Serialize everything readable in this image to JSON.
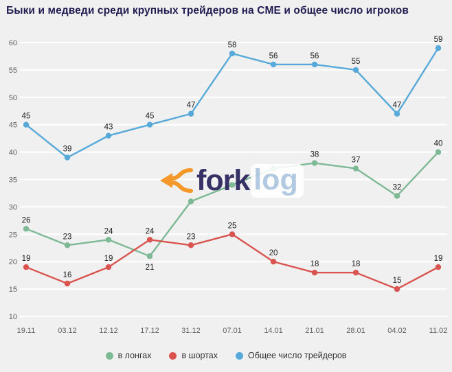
{
  "title": "Быки и медведи среди крупных трейдеров на CME и общее число игроков",
  "watermark": {
    "icon": "fork-arrows-icon",
    "icon_color": "#f6921e",
    "fork": "fork",
    "log": "log"
  },
  "chart_data": {
    "type": "line",
    "categories": [
      "19.11",
      "03.12",
      "12.12",
      "17.12",
      "31.12",
      "07.01",
      "14.01",
      "21.01",
      "28.01",
      "04.02",
      "11.02"
    ],
    "series": [
      {
        "name": "в лонгах",
        "color": "#7db994",
        "values": [
          26,
          23,
          24,
          21,
          31,
          34,
          37,
          38,
          37,
          32,
          40
        ],
        "labels": [
          "26",
          "23",
          "24",
          "21",
          "",
          "",
          "",
          "38",
          "37",
          "32",
          "40"
        ],
        "label_dy": {
          "3": 20
        }
      },
      {
        "name": "в шортах",
        "color": "#d9534f",
        "values": [
          19,
          16,
          19,
          24,
          23,
          25,
          20,
          18,
          18,
          15,
          19
        ],
        "labels": [
          "19",
          "16",
          "19",
          "24",
          "23",
          "25",
          "20",
          "18",
          "18",
          "15",
          "19"
        ]
      },
      {
        "name": "Общее число трейдеров",
        "color": "#56a9d8",
        "values": [
          45,
          39,
          43,
          45,
          47,
          58,
          56,
          56,
          55,
          47,
          59
        ],
        "labels": [
          "45",
          "39",
          "43",
          "45",
          "47",
          "58",
          "56",
          "56",
          "55",
          "47",
          "59"
        ]
      }
    ],
    "ylim": [
      10,
      60
    ],
    "yticks": [
      10,
      15,
      20,
      25,
      30,
      35,
      40,
      45,
      50,
      55,
      60
    ],
    "grid": true,
    "grid_color": "#ffffff",
    "background": "#f0f0f0",
    "legend_position": "bottom"
  }
}
